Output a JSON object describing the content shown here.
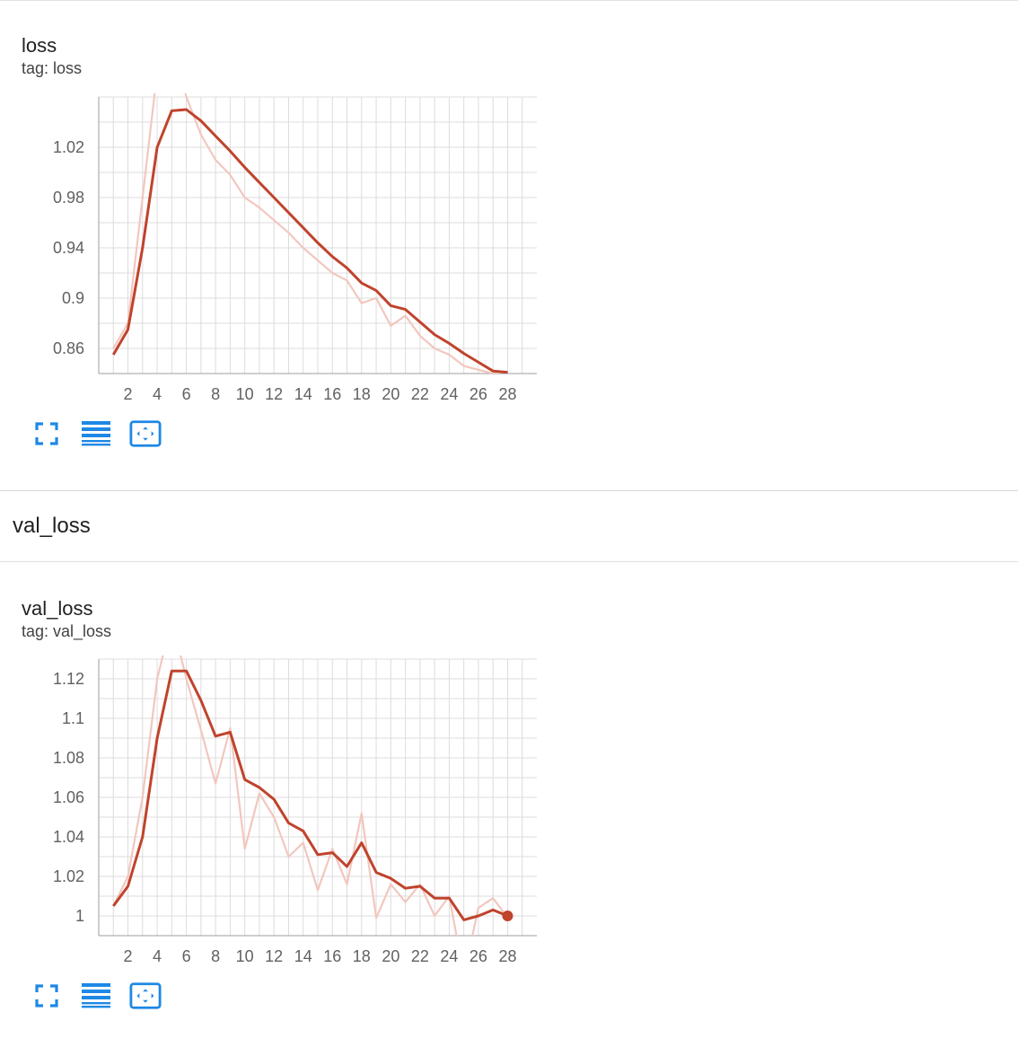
{
  "section": {
    "title": "val_loss"
  },
  "cards": [
    {
      "title": "loss",
      "tag": "tag: loss"
    },
    {
      "title": "val_loss",
      "tag": "tag: val_loss"
    }
  ],
  "toolbar": {
    "fit": "fit-domain-icon",
    "log": "toggle-log-scale-icon",
    "zoom": "reset-zoom-icon"
  },
  "colors": {
    "line": "#c0432c",
    "raw": "#f2c7bf",
    "grid": "#dcdcdc"
  },
  "chart_data": [
    {
      "type": "line",
      "title": "loss",
      "xticks": [
        2,
        4,
        6,
        8,
        10,
        12,
        14,
        16,
        18,
        20,
        22,
        24,
        26,
        28
      ],
      "xlim": [
        0,
        30
      ],
      "yticks": [
        0.86,
        0.9,
        0.94,
        0.98,
        1.02
      ],
      "ytick_labels": [
        "0.86",
        "0.9",
        "0.94",
        "0.98",
        "1.02"
      ],
      "ylim": [
        0.84,
        1.06
      ],
      "grid": true,
      "series": [
        {
          "role": "smoothed",
          "x": [
            1,
            2,
            3,
            4,
            5,
            6,
            7,
            8,
            9,
            10,
            11,
            12,
            13,
            14,
            15,
            16,
            17,
            18,
            19,
            20,
            21,
            22,
            23,
            24,
            25,
            26,
            27,
            28
          ],
          "y": [
            0.855,
            0.875,
            0.94,
            1.02,
            1.049,
            1.05,
            1.041,
            1.029,
            1.017,
            1.004,
            0.992,
            0.98,
            0.968,
            0.956,
            0.944,
            0.933,
            0.924,
            0.912,
            0.906,
            0.894,
            0.891,
            0.881,
            0.871,
            0.864,
            0.856,
            0.849,
            0.842,
            0.841
          ]
        },
        {
          "role": "raw",
          "x": [
            1,
            2,
            3,
            4,
            5,
            6,
            7,
            8,
            9,
            10,
            11,
            12,
            13,
            14,
            15,
            16,
            17,
            18,
            19,
            20,
            21,
            22,
            23,
            24,
            25,
            26,
            27,
            28
          ],
          "y": [
            0.86,
            0.88,
            0.98,
            1.08,
            1.1,
            1.06,
            1.03,
            1.01,
            0.998,
            0.98,
            0.972,
            0.962,
            0.952,
            0.94,
            0.93,
            0.92,
            0.914,
            0.896,
            0.9,
            0.878,
            0.886,
            0.87,
            0.86,
            0.855,
            0.846,
            0.843,
            0.84,
            0.839
          ]
        }
      ]
    },
    {
      "type": "line",
      "title": "val_loss",
      "xticks": [
        2,
        4,
        6,
        8,
        10,
        12,
        14,
        16,
        18,
        20,
        22,
        24,
        26,
        28
      ],
      "xlim": [
        0,
        30
      ],
      "yticks": [
        1,
        1.02,
        1.04,
        1.06,
        1.08,
        1.1,
        1.12
      ],
      "ytick_labels": [
        "1",
        "1.02",
        "1.04",
        "1.06",
        "1.08",
        "1.1",
        "1.12"
      ],
      "ylim": [
        0.99,
        1.13
      ],
      "grid": true,
      "series": [
        {
          "role": "smoothed",
          "x": [
            1,
            2,
            3,
            4,
            5,
            6,
            7,
            8,
            9,
            10,
            11,
            12,
            13,
            14,
            15,
            16,
            17,
            18,
            19,
            20,
            21,
            22,
            23,
            24,
            25,
            26,
            27,
            28
          ],
          "y": [
            1.005,
            1.015,
            1.04,
            1.09,
            1.124,
            1.124,
            1.109,
            1.091,
            1.093,
            1.069,
            1.065,
            1.059,
            1.047,
            1.043,
            1.031,
            1.032,
            1.025,
            1.037,
            1.022,
            1.019,
            1.014,
            1.015,
            1.009,
            1.009,
            0.998,
            1.0,
            1.003,
            1.0
          ]
        },
        {
          "role": "raw",
          "x": [
            1,
            2,
            3,
            4,
            5,
            6,
            7,
            8,
            9,
            10,
            11,
            12,
            13,
            14,
            15,
            16,
            17,
            18,
            19,
            20,
            21,
            22,
            23,
            24,
            25,
            26,
            27,
            28
          ],
          "y": [
            1.005,
            1.02,
            1.06,
            1.12,
            1.15,
            1.12,
            1.094,
            1.067,
            1.095,
            1.034,
            1.062,
            1.05,
            1.03,
            1.037,
            1.013,
            1.034,
            1.016,
            1.052,
            0.999,
            1.016,
            1.007,
            1.016,
            1.0,
            1.01,
            0.97,
            1.004,
            1.009,
            0.999
          ]
        }
      ]
    }
  ]
}
